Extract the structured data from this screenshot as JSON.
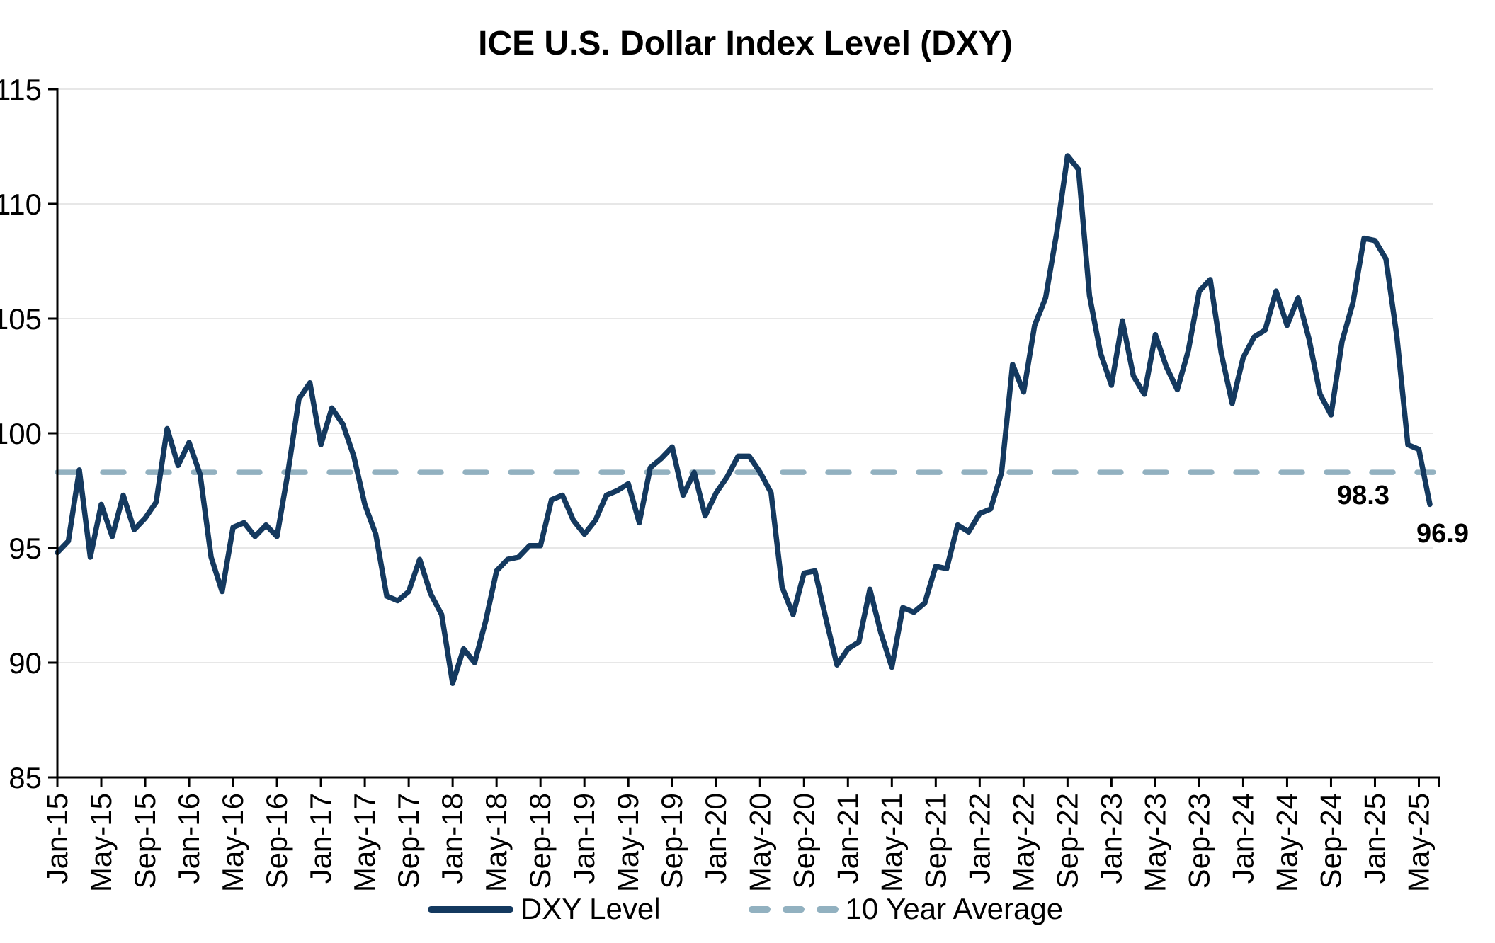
{
  "title": "ICE U.S. Dollar Index Level (DXY)",
  "legend": {
    "series_label": "DXY Level",
    "average_label": "10 Year Average"
  },
  "annotations": {
    "average_value": "98.3",
    "last_value": "96.9"
  },
  "colors": {
    "series": "#14395F",
    "average": "#92B1C0",
    "gridline": "#E7E7E7",
    "axis": "#000000",
    "text": "#000000"
  },
  "chart_data": {
    "type": "line",
    "title": "ICE U.S. Dollar Index Level (DXY)",
    "xlabel": "",
    "ylabel": "",
    "ylim": [
      85,
      115
    ],
    "y_ticks": [
      85,
      90,
      95,
      100,
      105,
      110,
      115
    ],
    "grid": true,
    "legend_position": "bottom",
    "x_tick_every": 4,
    "average_line": 98.3,
    "last_value": 96.9,
    "months": [
      "Jan-15",
      "Feb-15",
      "Mar-15",
      "Apr-15",
      "May-15",
      "Jun-15",
      "Jul-15",
      "Aug-15",
      "Sep-15",
      "Oct-15",
      "Nov-15",
      "Dec-15",
      "Jan-16",
      "Feb-16",
      "Mar-16",
      "Apr-16",
      "May-16",
      "Jun-16",
      "Jul-16",
      "Aug-16",
      "Sep-16",
      "Oct-16",
      "Nov-16",
      "Dec-16",
      "Jan-17",
      "Feb-17",
      "Mar-17",
      "Apr-17",
      "May-17",
      "Jun-17",
      "Jul-17",
      "Aug-17",
      "Sep-17",
      "Oct-17",
      "Nov-17",
      "Dec-17",
      "Jan-18",
      "Feb-18",
      "Mar-18",
      "Apr-18",
      "May-18",
      "Jun-18",
      "Jul-18",
      "Aug-18",
      "Sep-18",
      "Oct-18",
      "Nov-18",
      "Dec-18",
      "Jan-19",
      "Feb-19",
      "Mar-19",
      "Apr-19",
      "May-19",
      "Jun-19",
      "Jul-19",
      "Aug-19",
      "Sep-19",
      "Oct-19",
      "Nov-19",
      "Dec-19",
      "Jan-20",
      "Feb-20",
      "Mar-20",
      "Apr-20",
      "May-20",
      "Jun-20",
      "Jul-20",
      "Aug-20",
      "Sep-20",
      "Oct-20",
      "Nov-20",
      "Dec-20",
      "Jan-21",
      "Feb-21",
      "Mar-21",
      "Apr-21",
      "May-21",
      "Jun-21",
      "Jul-21",
      "Aug-21",
      "Sep-21",
      "Oct-21",
      "Nov-21",
      "Dec-21",
      "Jan-22",
      "Feb-22",
      "Mar-22",
      "Apr-22",
      "May-22",
      "Jun-22",
      "Jul-22",
      "Aug-22",
      "Sep-22",
      "Oct-22",
      "Nov-22",
      "Dec-22",
      "Jan-23",
      "Feb-23",
      "Mar-23",
      "Apr-23",
      "May-23",
      "Jun-23",
      "Jul-23",
      "Aug-23",
      "Sep-23",
      "Oct-23",
      "Nov-23",
      "Dec-23",
      "Jan-24",
      "Feb-24",
      "Mar-24",
      "Apr-24",
      "May-24",
      "Jun-24",
      "Jul-24",
      "Aug-24",
      "Sep-24",
      "Oct-24",
      "Nov-24",
      "Dec-24",
      "Jan-25",
      "Feb-25",
      "Mar-25",
      "Apr-25",
      "May-25",
      "Jun-25"
    ],
    "series": [
      {
        "name": "DXY Level",
        "values": [
          94.8,
          95.3,
          98.4,
          94.6,
          96.9,
          95.5,
          97.3,
          95.8,
          96.3,
          97.0,
          100.2,
          98.6,
          99.6,
          98.2,
          94.6,
          93.1,
          95.9,
          96.1,
          95.5,
          96.0,
          95.5,
          98.3,
          101.5,
          102.2,
          99.5,
          101.1,
          100.4,
          99.0,
          96.9,
          95.6,
          92.9,
          92.7,
          93.1,
          94.5,
          93.0,
          92.1,
          89.1,
          90.6,
          90.0,
          91.8,
          94.0,
          94.5,
          94.6,
          95.1,
          95.1,
          97.1,
          97.3,
          96.2,
          95.6,
          96.2,
          97.3,
          97.5,
          97.8,
          96.1,
          98.5,
          98.9,
          99.4,
          97.3,
          98.3,
          96.4,
          97.4,
          98.1,
          99.0,
          99.0,
          98.3,
          97.4,
          93.3,
          92.1,
          93.9,
          94.0,
          91.9,
          89.9,
          90.6,
          90.9,
          93.2,
          91.3,
          89.8,
          92.4,
          92.2,
          92.6,
          94.2,
          94.1,
          96.0,
          95.7,
          96.5,
          96.7,
          98.3,
          103.0,
          101.8,
          104.7,
          105.9,
          108.7,
          112.1,
          111.5,
          106.0,
          103.5,
          102.1,
          104.9,
          102.5,
          101.7,
          104.3,
          102.9,
          101.9,
          103.6,
          106.2,
          106.7,
          103.5,
          101.3,
          103.3,
          104.2,
          104.5,
          106.2,
          104.7,
          105.9,
          104.1,
          101.7,
          100.8,
          104.0,
          105.7,
          108.5,
          108.4,
          107.6,
          104.2,
          99.5,
          99.3,
          96.9
        ]
      }
    ]
  }
}
